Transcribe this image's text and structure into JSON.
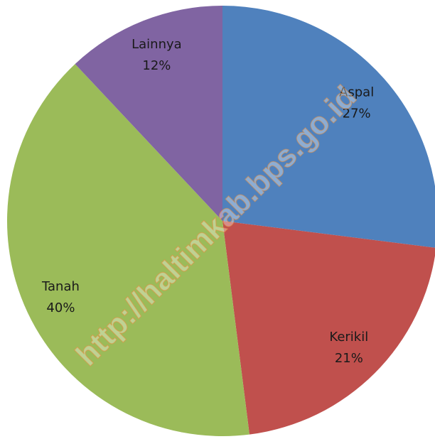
{
  "chart_data": {
    "type": "pie",
    "categories": [
      "Aspal",
      "Kerikil",
      "Tanah",
      "Lainnya"
    ],
    "values": [
      27,
      21,
      40,
      12
    ],
    "value_labels": [
      "27%",
      "21%",
      "40%",
      "12%"
    ],
    "colors": [
      "#4f81bd",
      "#c0504d",
      "#9bbb59",
      "#8064a2"
    ],
    "watermark": "http://haltimkab.bps.go.id"
  }
}
